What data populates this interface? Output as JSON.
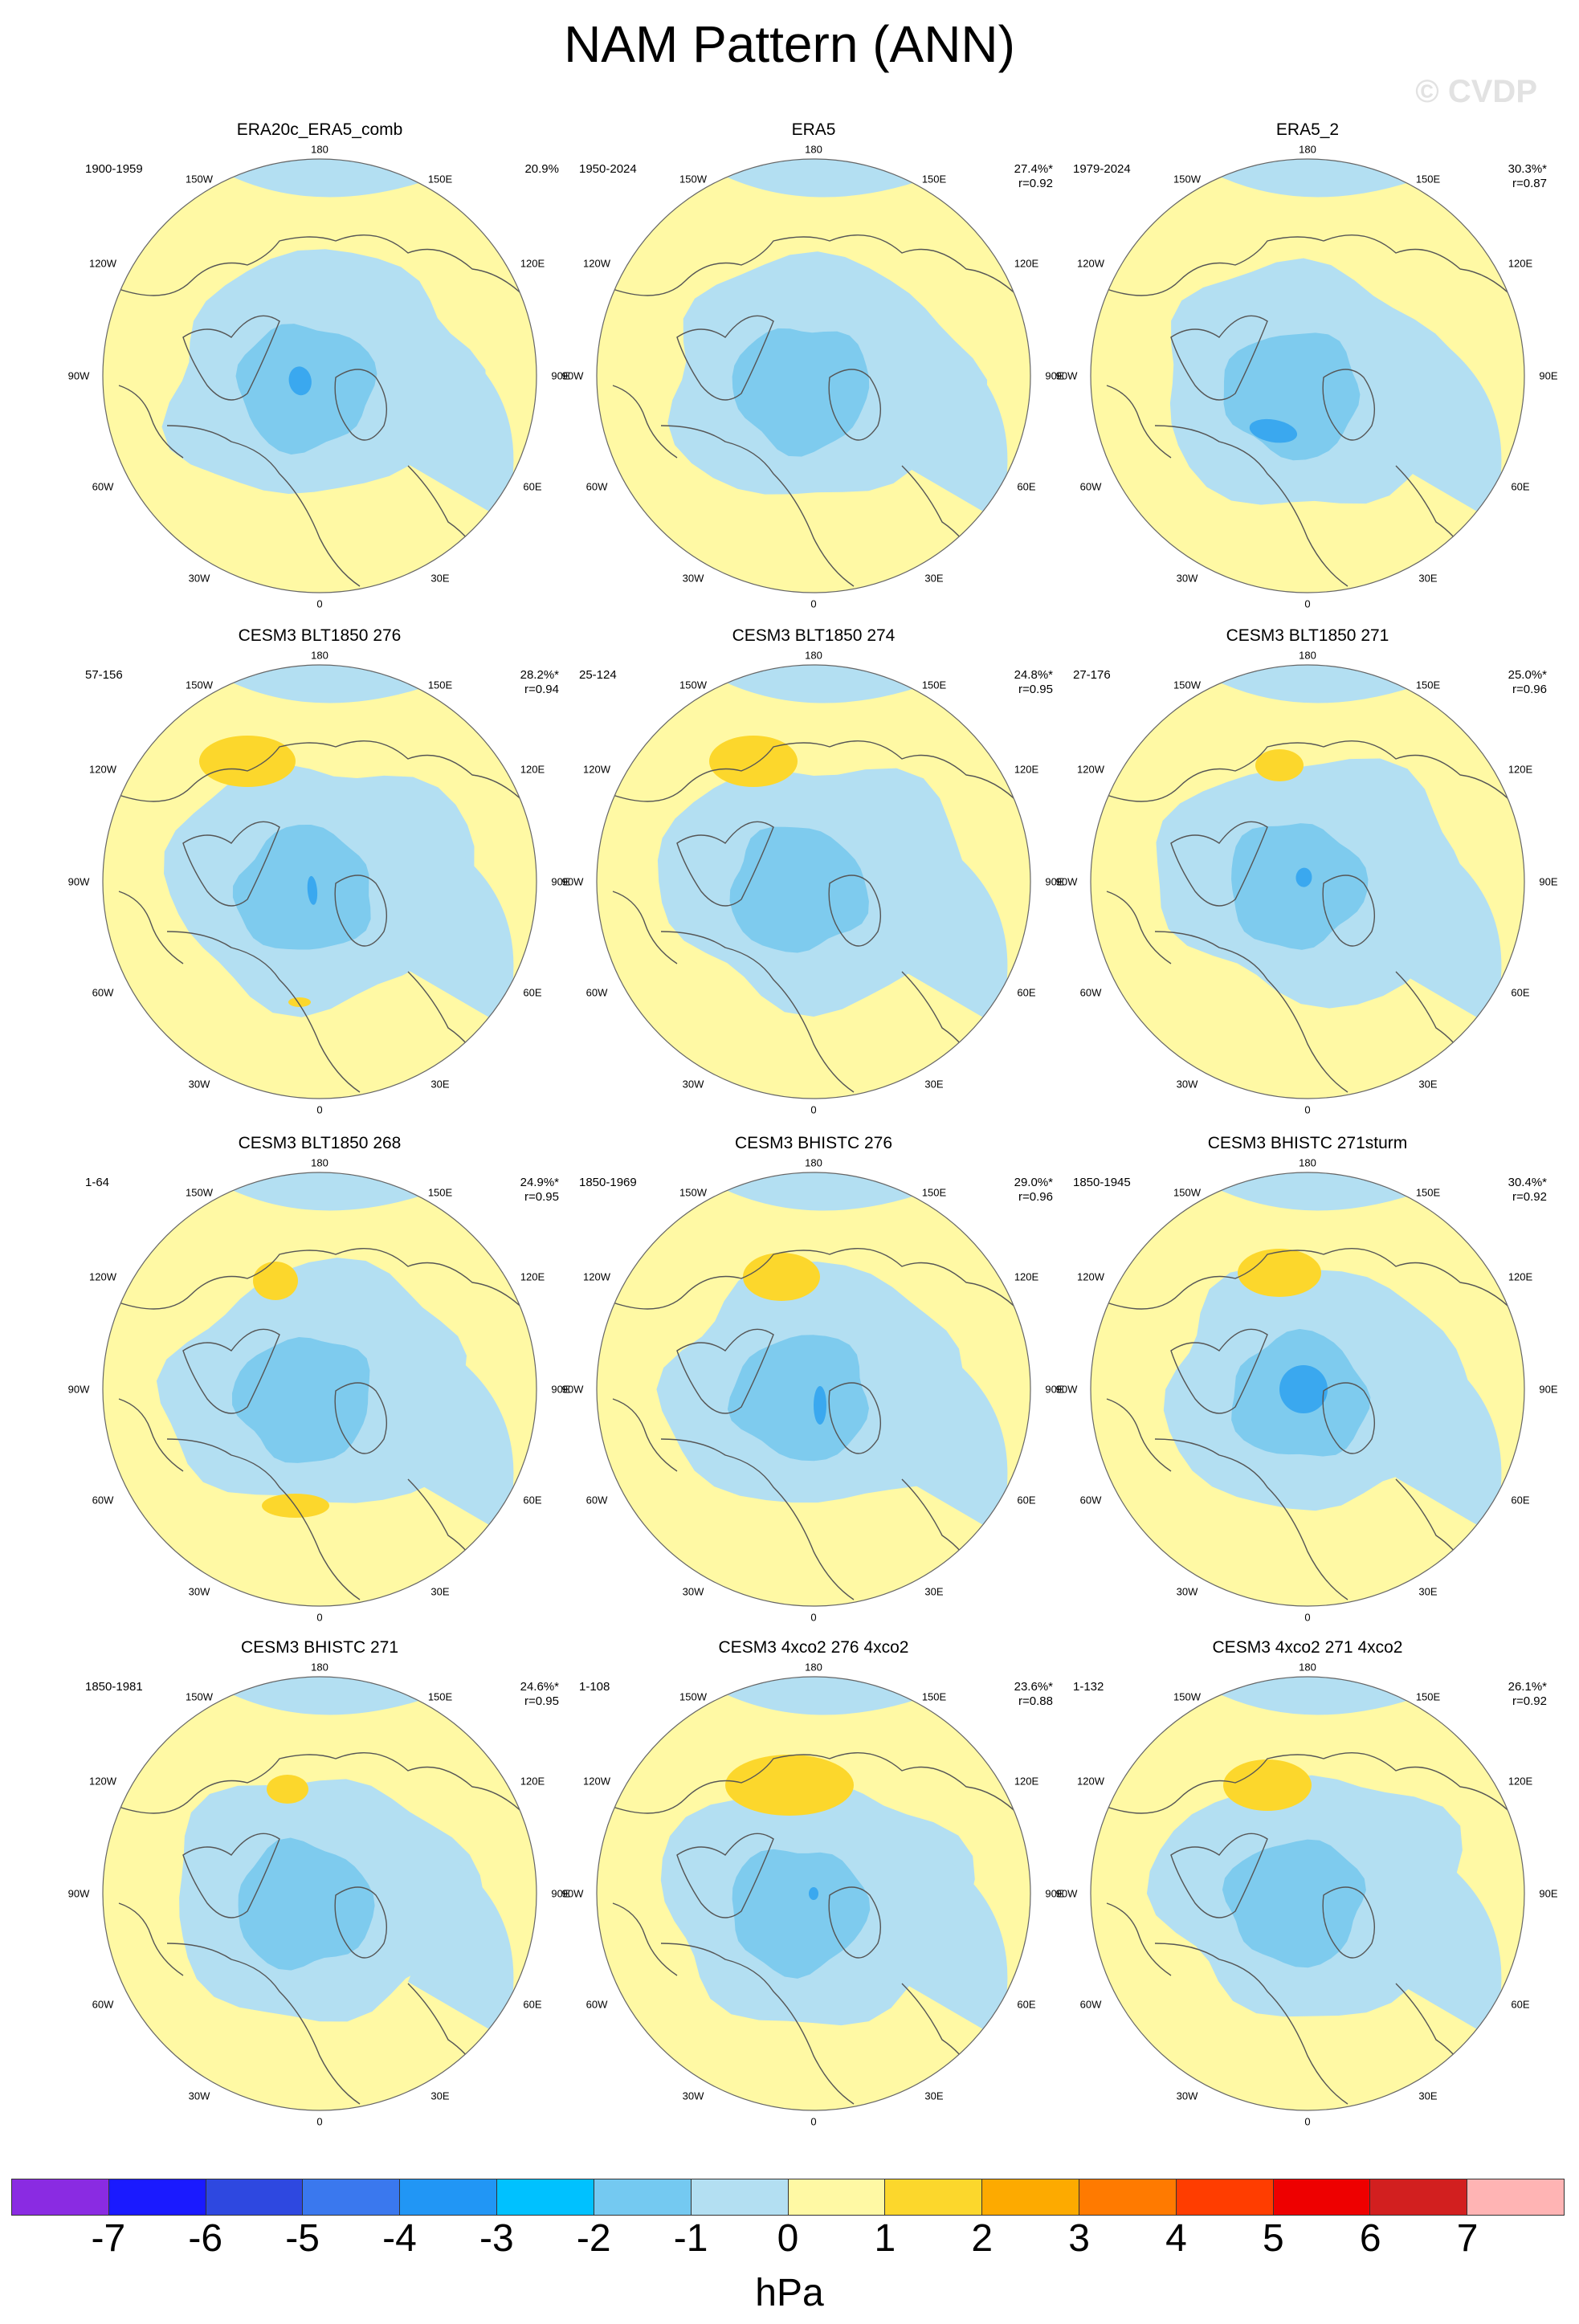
{
  "title": "NAM Pattern (ANN)",
  "watermark": "© CVDP",
  "colors": {
    "neg2": "#7ecbee",
    "neg1": "#b3dff2",
    "zero": "#fff9a4",
    "pos1": "#fcd72c",
    "coast": "#555555"
  },
  "lon_labels": {
    "top": "180",
    "bottom": "0",
    "left": "90W",
    "right": "90E",
    "ul1": "150W",
    "ul2": "120W",
    "ll1": "60W",
    "ll2": "30W",
    "ur1": "150E",
    "ur2": "120E",
    "lr1": "60E",
    "lr2": "30E"
  },
  "panels": [
    {
      "title": "ERA20c_ERA5_comb",
      "period": "1900-1959",
      "pct": "20.9%",
      "r": ""
    },
    {
      "title": "ERA5",
      "period": "1950-2024",
      "pct": "27.4%*",
      "r": "r=0.92"
    },
    {
      "title": "ERA5_2",
      "period": "1979-2024",
      "pct": "30.3%*",
      "r": "r=0.87"
    },
    {
      "title": "CESM3 BLT1850 276",
      "period": "57-156",
      "pct": "28.2%*",
      "r": "r=0.94"
    },
    {
      "title": "CESM3 BLT1850 274",
      "period": "25-124",
      "pct": "24.8%*",
      "r": "r=0.95"
    },
    {
      "title": "CESM3 BLT1850 271",
      "period": "27-176",
      "pct": "25.0%*",
      "r": "r=0.96"
    },
    {
      "title": "CESM3 BLT1850 268",
      "period": "1-64",
      "pct": "24.9%*",
      "r": "r=0.95"
    },
    {
      "title": "CESM3 BHISTC 276",
      "period": "1850-1969",
      "pct": "29.0%*",
      "r": "r=0.96"
    },
    {
      "title": "CESM3 BHISTC 271sturm",
      "period": "1850-1945",
      "pct": "30.4%*",
      "r": "r=0.92"
    },
    {
      "title": "CESM3 BHISTC 271",
      "period": "1850-1981",
      "pct": "24.6%*",
      "r": "r=0.95"
    },
    {
      "title": "CESM3 4xco2 276 4xco2",
      "period": "1-108",
      "pct": "23.6%*",
      "r": "r=0.88"
    },
    {
      "title": "CESM3 4xco2 271 4xco2",
      "period": "1-132",
      "pct": "26.1%*",
      "r": "r=0.92"
    }
  ],
  "colorbar": {
    "colors": [
      "#8a2be2",
      "#1a1aff",
      "#2e48e0",
      "#3a78ee",
      "#2196f5",
      "#00c1ff",
      "#74c9f1",
      "#b3dff2",
      "#fff9a4",
      "#fcd72c",
      "#fdaa00",
      "#ff7a00",
      "#ff3d00",
      "#ee0000",
      "#d21f1f",
      "#ffb4b4"
    ],
    "ticks": [
      "-7",
      "-6",
      "-5",
      "-4",
      "-3",
      "-2",
      "-1",
      "0",
      "1",
      "2",
      "3",
      "4",
      "5",
      "6",
      "7"
    ],
    "unit": "hPa"
  }
}
